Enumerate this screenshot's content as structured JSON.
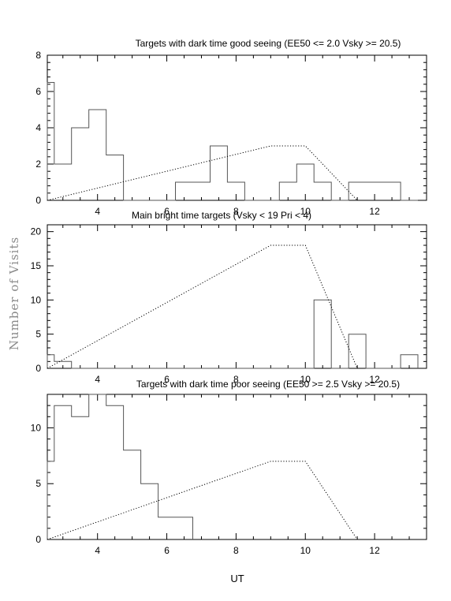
{
  "figure": {
    "ylabel": "Number of Visits",
    "xlabel": "UT"
  },
  "chart_data": [
    {
      "type": "histogram",
      "title": "Targets with dark time good seeing (EE50 <= 2.0 Vsky >= 20.5)",
      "xlim": [
        2.55,
        13.5
      ],
      "ylim": [
        0,
        8
      ],
      "yticks": [
        0,
        2,
        4,
        6,
        8
      ],
      "xticks": [
        4,
        6,
        8,
        10,
        12
      ],
      "series": [
        {
          "style": "histogram",
          "color": "#555555",
          "x": [
            2.55,
            2.75,
            3.25,
            3.75,
            4.25,
            4.75,
            5.25,
            5.75,
            6.25,
            6.75,
            7.25,
            7.75,
            8.25,
            8.75,
            9.25,
            9.75,
            10.25,
            10.75,
            11.25,
            11.75,
            12.25,
            12.75,
            13.25
          ],
          "values": [
            6.5,
            2,
            4,
            5,
            2.5,
            0,
            0,
            0,
            1,
            1,
            3,
            1,
            0,
            0,
            1,
            2,
            1,
            0,
            1,
            1,
            1,
            0
          ]
        },
        {
          "style": "dotted",
          "color": "#000000",
          "x": [
            2.55,
            9.0,
            10.0,
            11.5
          ],
          "values": [
            0,
            3,
            3,
            0
          ]
        }
      ]
    },
    {
      "type": "histogram",
      "title": "Main bright time targets (Vsky < 19 Pri < 4)",
      "xlim": [
        2.55,
        13.5
      ],
      "ylim": [
        0,
        21
      ],
      "yticks": [
        0,
        5,
        10,
        15,
        20
      ],
      "xticks": [
        4,
        6,
        8,
        10,
        12
      ],
      "series": [
        {
          "style": "histogram",
          "color": "#555555",
          "x": [
            2.55,
            2.75,
            3.25,
            3.75,
            4.25,
            4.75,
            5.25,
            5.75,
            6.25,
            6.75,
            7.25,
            7.75,
            8.25,
            8.75,
            9.25,
            9.75,
            10.25,
            10.75,
            11.25,
            11.75,
            12.25,
            12.75,
            13.25
          ],
          "values": [
            2,
            1,
            0,
            0,
            0,
            0,
            0,
            0,
            0,
            0,
            0,
            0,
            0,
            0,
            0,
            0,
            10,
            0,
            5,
            0,
            0,
            2
          ]
        },
        {
          "style": "dotted",
          "color": "#000000",
          "x": [
            2.55,
            9.0,
            10.0,
            11.5
          ],
          "values": [
            0,
            18,
            18,
            0
          ]
        }
      ]
    },
    {
      "type": "histogram",
      "title": "Targets with dark time poor seeing (EE50 >= 2.5 Vsky >= 20.5)",
      "xlim": [
        2.55,
        13.5
      ],
      "ylim": [
        0,
        13
      ],
      "yticks": [
        0,
        5,
        10
      ],
      "xticks": [
        4,
        6,
        8,
        10,
        12
      ],
      "series": [
        {
          "style": "histogram",
          "color": "#555555",
          "x": [
            2.55,
            2.75,
            3.25,
            3.75,
            4.25,
            4.75,
            5.25,
            5.75,
            6.25,
            6.75
          ],
          "values": [
            7,
            12,
            11,
            13,
            12,
            8,
            5,
            2,
            2
          ]
        },
        {
          "style": "dotted",
          "color": "#000000",
          "x": [
            2.55,
            9.0,
            10.0,
            11.5
          ],
          "values": [
            0,
            7,
            7,
            0
          ]
        }
      ]
    }
  ]
}
